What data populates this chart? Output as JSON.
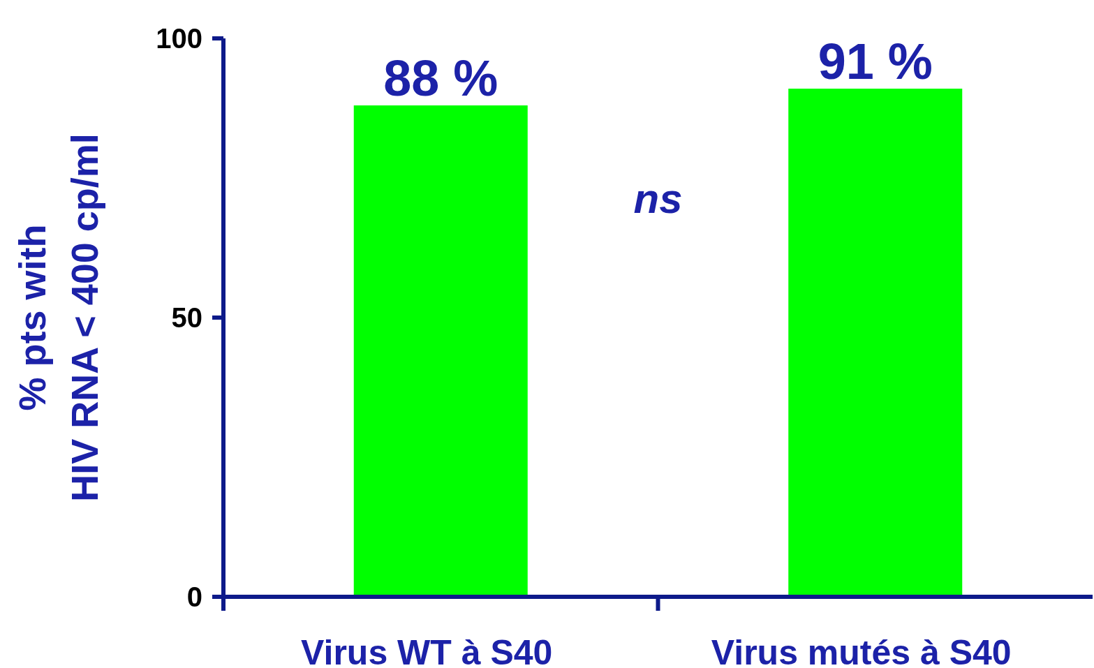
{
  "chart_data": {
    "type": "bar",
    "ylabel": "% pts with\nHIV RNA < 400 cp/ml",
    "categories": [
      "Virus WT à S40",
      "Virus mutés à S40"
    ],
    "values": [
      88,
      91
    ],
    "color": "#00ff00",
    "value_labels": [
      "88 %",
      "91 %"
    ],
    "ylim": [
      0,
      100
    ],
    "yticks": [
      0,
      50,
      100
    ],
    "annotations": [
      "ns"
    ]
  }
}
